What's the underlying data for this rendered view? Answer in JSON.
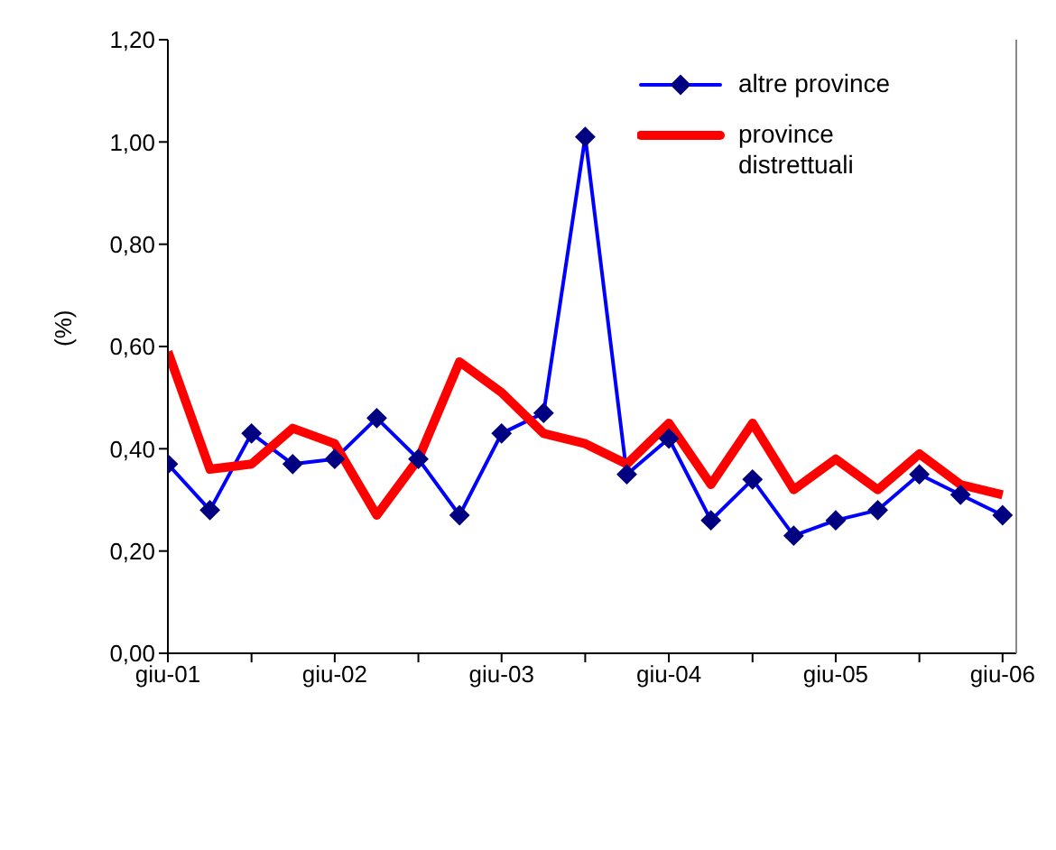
{
  "chart_data": {
    "type": "line",
    "ylabel": "(%)",
    "x": [
      "2001-06",
      "2001-09",
      "2001-12",
      "2002-03",
      "2002-06",
      "2002-09",
      "2002-12",
      "2003-03",
      "2003-06",
      "2003-09",
      "2003-12",
      "2004-03",
      "2004-06",
      "2004-09",
      "2004-12",
      "2005-03",
      "2005-06",
      "2005-09",
      "2005-12",
      "2006-03",
      "2006-06"
    ],
    "series": [
      {
        "name": "altre province",
        "color": "#0000ff",
        "marker": "diamond",
        "values": [
          0.37,
          0.28,
          0.43,
          0.37,
          0.38,
          0.46,
          0.38,
          0.27,
          0.43,
          0.47,
          1.01,
          0.35,
          0.42,
          0.26,
          0.34,
          0.23,
          0.26,
          0.28,
          0.35,
          0.31,
          0.27
        ]
      },
      {
        "name": "province distrettuali",
        "color": "#ff0000",
        "marker": "none",
        "values": [
          0.59,
          0.36,
          0.37,
          0.44,
          0.41,
          0.27,
          0.38,
          0.57,
          0.51,
          0.43,
          0.41,
          0.37,
          0.45,
          0.33,
          0.45,
          0.32,
          0.38,
          0.32,
          0.39,
          0.33,
          0.31
        ]
      }
    ],
    "xlim": [
      "2001-06",
      "2006-07"
    ],
    "xticks": [
      {
        "value": "2001-06",
        "label": "giu-01"
      },
      {
        "value": "2001-12",
        "label": null
      },
      {
        "value": "2002-06",
        "label": "giu-02"
      },
      {
        "value": "2002-12",
        "label": null
      },
      {
        "value": "2003-06",
        "label": "giu-03"
      },
      {
        "value": "2003-12",
        "label": null
      },
      {
        "value": "2004-06",
        "label": "giu-04"
      },
      {
        "value": "2004-12",
        "label": null
      },
      {
        "value": "2005-06",
        "label": "giu-05"
      },
      {
        "value": "2005-12",
        "label": null
      },
      {
        "value": "2006-06",
        "label": "giu-06"
      }
    ],
    "ylim": [
      0,
      1.2
    ],
    "yticks": [
      {
        "value": 0,
        "label": "0,00"
      },
      {
        "value": 0.2,
        "label": "0,20"
      },
      {
        "value": 0.4,
        "label": "0,40"
      },
      {
        "value": 0.6,
        "label": "0,60"
      },
      {
        "value": 0.8,
        "label": "0,80"
      },
      {
        "value": 1,
        "label": "1,00"
      },
      {
        "value": 1.2,
        "label": "1,20"
      }
    ],
    "grid": false,
    "legend": "top right"
  }
}
